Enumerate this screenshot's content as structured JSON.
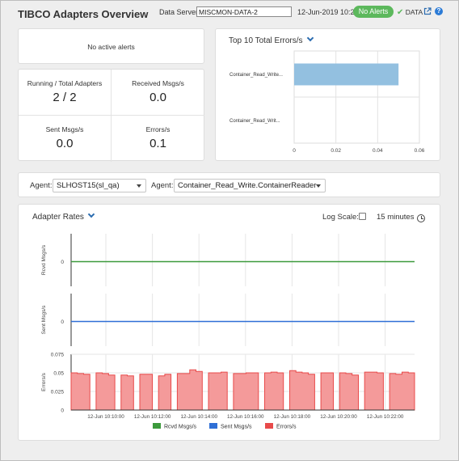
{
  "header": {
    "title": "TIBCO Adapters Overview",
    "data_server_label": "Data Server:",
    "data_server_value": "MISCMON-DATA-2",
    "datetime": "12-Jun-2019 10:23",
    "alerts_badge": "No Alerts",
    "data_status": "DATA",
    "help": "?"
  },
  "alerts": {
    "message": "No active alerts"
  },
  "metrics": {
    "running_label": "Running / Total Adapters",
    "running_value": "2 / 2",
    "received_label": "Received Msgs/s",
    "received_value": "0.0",
    "sent_label": "Sent Msgs/s",
    "sent_value": "0.0",
    "errors_label": "Errors/s",
    "errors_value": "0.1"
  },
  "top_errors": {
    "title": "Top 10 Total Errors/s"
  },
  "agents": {
    "agent_label_1": "Agent:",
    "agent_value_1": "SLHOST15(sl_qa)",
    "agent_label_2": "Agent:",
    "agent_value_2": "Container_Read_Write.ContainerReader"
  },
  "rates": {
    "title": "Adapter Rates",
    "log_scale_label": "Log Scale:",
    "log_scale_checked": false,
    "time_range": "15 minutes"
  },
  "colors": {
    "rcvd": "#3c9a3c",
    "sent": "#2f6fd6",
    "errors": "#e84a4a",
    "errors_fill": "#f49a9a",
    "bar": "#93c0e0",
    "badge": "#5cb85c"
  },
  "chart_data": [
    {
      "type": "bar",
      "orientation": "horizontal",
      "title": "Top 10 Total Errors/s",
      "categories": [
        "Container_Read_Write...",
        "Container_Read_Writ..."
      ],
      "values": [
        0.05,
        0
      ],
      "xlim": [
        0,
        0.06
      ],
      "xticks": [
        "0",
        "0.02",
        "0.04",
        "0.06"
      ],
      "grid": true
    },
    {
      "type": "line",
      "ylabel": "Rcvd Msgs/s",
      "yticks": [
        "0"
      ],
      "series": [
        {
          "name": "Rcvd Msgs/s",
          "values": [
            0
          ]
        }
      ]
    },
    {
      "type": "line",
      "ylabel": "Sent Msgs/s",
      "yticks": [
        "0"
      ],
      "series": [
        {
          "name": "Sent Msgs/s",
          "values": [
            0
          ]
        }
      ]
    },
    {
      "type": "area",
      "ylabel": "Errors/s",
      "ylim": [
        0,
        0.075
      ],
      "yticks": [
        "0",
        "0.025",
        "0.05",
        "0.075"
      ],
      "x_ticks": [
        "12-Jun 10:10:00",
        "12-Jun 10:12:00",
        "12-Jun 10:14:00",
        "12-Jun 10:16:00",
        "12-Jun 10:18:00",
        "12-Jun 10:20:00",
        "12-Jun 10:22:00"
      ],
      "series": [
        {
          "name": "Errors/s",
          "values": [
            0.05,
            0.049,
            0.048,
            0,
            0.05,
            0.049,
            0.047,
            0,
            0.047,
            0.046,
            0,
            0.048,
            0.048,
            0,
            0.046,
            0.048,
            0,
            0.049,
            0.049,
            0.054,
            0.052,
            0,
            0.05,
            0.05,
            0.051,
            0,
            0.049,
            0.049,
            0.05,
            0.05,
            0,
            0.05,
            0.051,
            0.05,
            0,
            0.053,
            0.051,
            0.05,
            0.048,
            0,
            0.05,
            0.05,
            0,
            0.05,
            0.049,
            0.047,
            0,
            0.051,
            0.051,
            0.05,
            0,
            0.049,
            0.048,
            0.051,
            0.05
          ]
        }
      ],
      "legend": [
        "Rcvd Msgs/s",
        "Sent Msgs/s",
        "Errors/s"
      ],
      "legend_position": "bottom"
    }
  ]
}
